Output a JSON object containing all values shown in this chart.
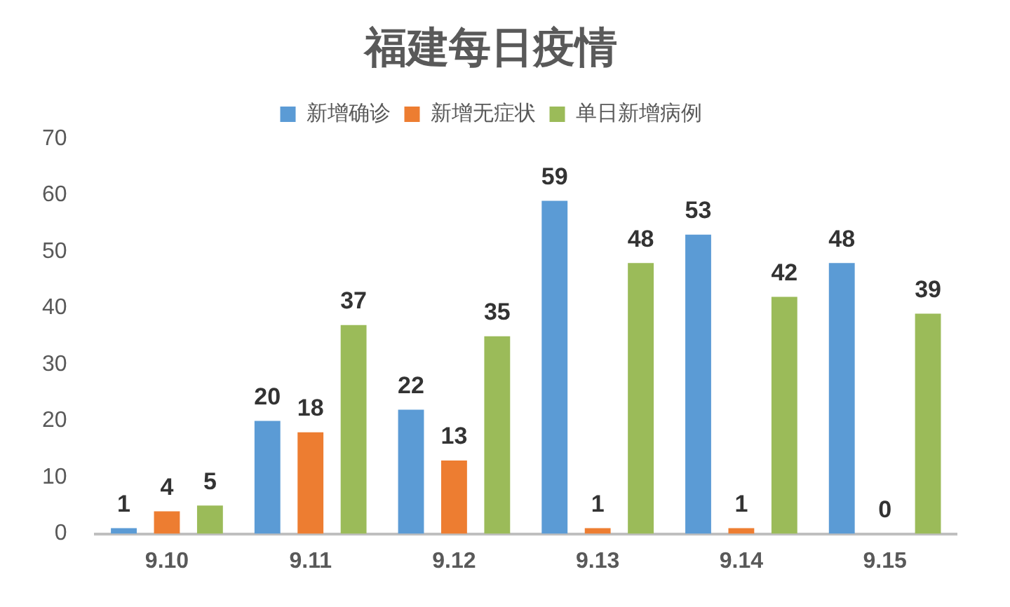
{
  "chart_data": {
    "type": "bar",
    "title": "福建每日疫情",
    "categories": [
      "9.10",
      "9.11",
      "9.12",
      "9.13",
      "9.14",
      "9.15"
    ],
    "series": [
      {
        "name": "新增确诊",
        "color": "#5b9bd5",
        "values": [
          1,
          20,
          22,
          59,
          53,
          48
        ]
      },
      {
        "name": "新增无症状",
        "color": "#ed7d31",
        "values": [
          4,
          18,
          13,
          1,
          1,
          0
        ]
      },
      {
        "name": "单日新增病例",
        "color": "#9bbb59",
        "values": [
          5,
          37,
          35,
          48,
          42,
          39
        ]
      }
    ],
    "ylim": [
      0,
      70
    ],
    "yticks": [
      0,
      10,
      20,
      30,
      40,
      50,
      60,
      70
    ],
    "grid": false,
    "legend": "top",
    "data_labels": true
  }
}
